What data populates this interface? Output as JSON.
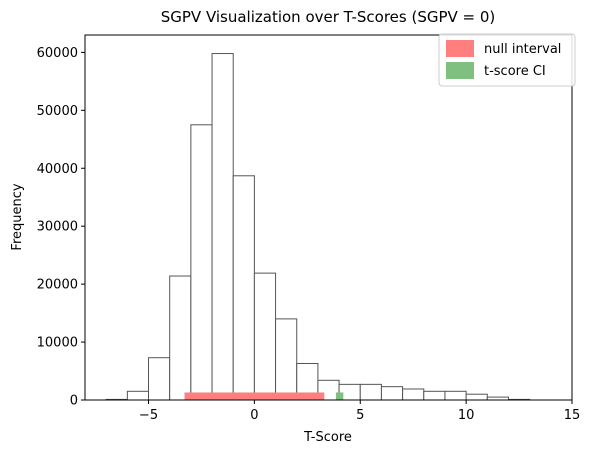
{
  "chart_data": {
    "type": "bar",
    "title": "SGPV Visualization over T-Scores (SGPV = 0)",
    "xlabel": "T-Score",
    "ylabel": "Frequency",
    "xlim": [
      -8,
      15
    ],
    "ylim": [
      0,
      63000
    ],
    "xticks": [
      -5,
      0,
      5,
      10,
      15
    ],
    "yticks": [
      0,
      10000,
      20000,
      30000,
      40000,
      50000,
      60000
    ],
    "grid": false,
    "legend_position": "top-right",
    "histogram": {
      "name": "",
      "bin_start": -7,
      "bin_width": 1,
      "fill": "#ffffff",
      "edge_color": "#555555",
      "counts": [
        100,
        1500,
        7300,
        21400,
        47500,
        59800,
        38700,
        21900,
        14000,
        6300,
        3400,
        2700,
        2700,
        2300,
        1900,
        1500,
        1500,
        1000,
        500,
        100
      ]
    },
    "intervals": [
      {
        "name": "null interval",
        "x0": -3.3,
        "x1": 3.3,
        "color": "#ff7f7f"
      },
      {
        "name": "t-score CI",
        "x0": 3.85,
        "x1": 4.2,
        "color": "#7fbf7f"
      }
    ],
    "interval_band_height": 1300
  }
}
